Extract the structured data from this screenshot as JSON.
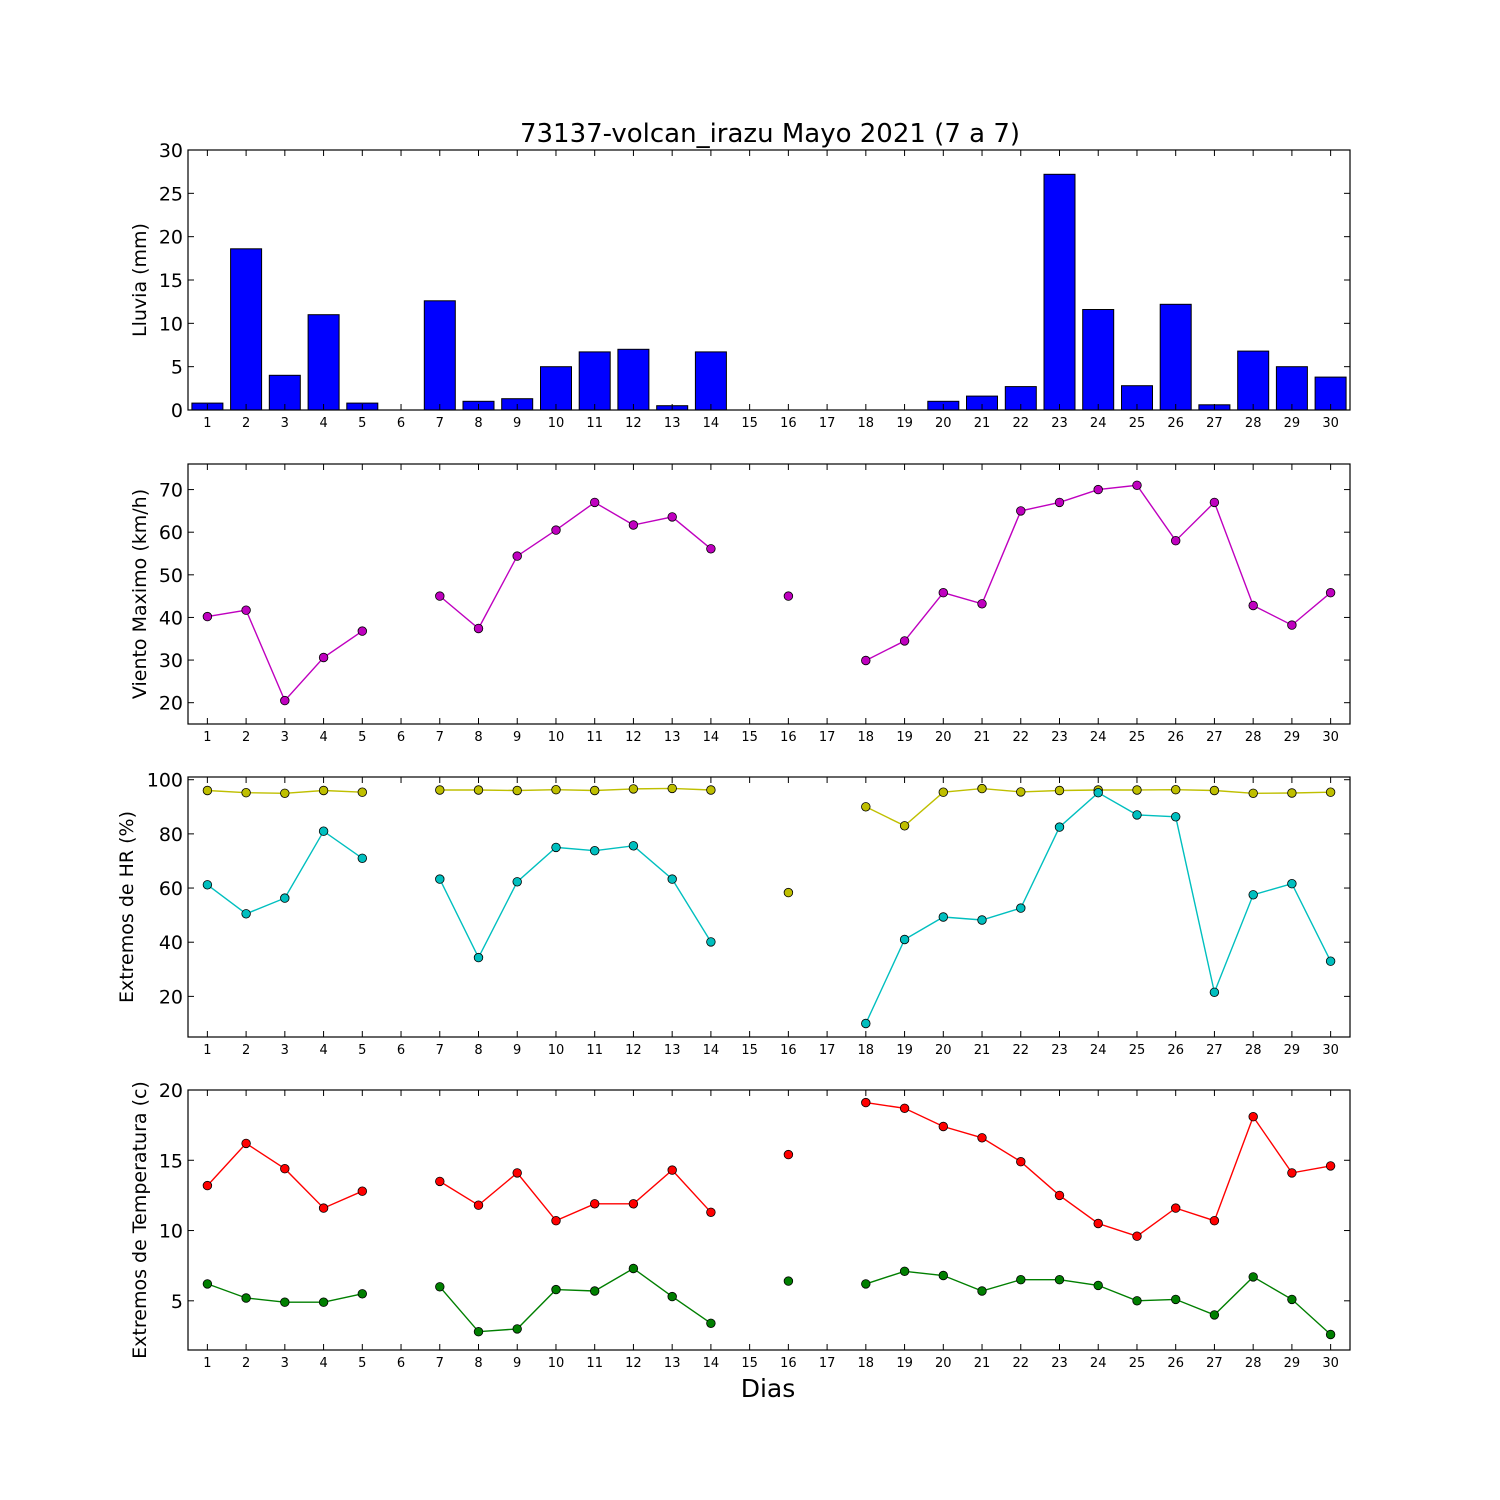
{
  "title": "73137-volcan_irazu Mayo 2021  (7 a 7)",
  "xlabel": "Dias",
  "chart_data": [
    {
      "type": "bar",
      "ylabel": "Lluvia (mm)",
      "ylim": [
        0,
        30
      ],
      "yticks": [
        0,
        5,
        10,
        15,
        20,
        25,
        30
      ],
      "categories": [
        "1",
        "2",
        "3",
        "4",
        "5",
        "6",
        "7",
        "8",
        "9",
        "10",
        "11",
        "12",
        "13",
        "14",
        "15",
        "16",
        "17",
        "18",
        "19",
        "20",
        "21",
        "22",
        "23",
        "24",
        "25",
        "26",
        "27",
        "28",
        "29",
        "30"
      ],
      "series": [
        {
          "color": "#0000ff",
          "values": [
            0.8,
            18.6,
            4.0,
            11.0,
            0.8,
            0,
            12.6,
            1.0,
            1.3,
            5.0,
            6.7,
            7.0,
            0.5,
            6.7,
            0,
            0,
            0,
            0,
            0,
            1.0,
            1.6,
            2.7,
            27.2,
            11.6,
            2.8,
            12.2,
            0.6,
            6.8,
            5.0,
            3.8
          ]
        }
      ],
      "grid": false
    },
    {
      "type": "line",
      "ylabel": "Viento Maximo (km/h)",
      "ylim": [
        15,
        76
      ],
      "yticks": [
        20,
        30,
        40,
        50,
        60,
        70
      ],
      "categories": [
        "1",
        "2",
        "3",
        "4",
        "5",
        "6",
        "7",
        "8",
        "9",
        "10",
        "11",
        "12",
        "13",
        "14",
        "15",
        "16",
        "17",
        "18",
        "19",
        "20",
        "21",
        "22",
        "23",
        "24",
        "25",
        "26",
        "27",
        "28",
        "29",
        "30"
      ],
      "series": [
        {
          "color": "#bf00bf",
          "values": [
            40.2,
            41.7,
            20.5,
            30.6,
            36.8,
            null,
            45.0,
            37.4,
            54.4,
            60.5,
            67.0,
            61.7,
            63.6,
            56.1,
            null,
            45.0,
            null,
            29.9,
            34.5,
            45.8,
            43.2,
            65.0,
            67.0,
            70.0,
            71.0,
            58.0,
            67.0,
            42.8,
            38.2,
            45.8
          ]
        }
      ],
      "grid": false
    },
    {
      "type": "line",
      "ylabel": "Extremos de HR (%)",
      "ylim": [
        5,
        101
      ],
      "yticks": [
        20,
        40,
        60,
        80,
        100
      ],
      "categories": [
        "1",
        "2",
        "3",
        "4",
        "5",
        "6",
        "7",
        "8",
        "9",
        "10",
        "11",
        "12",
        "13",
        "14",
        "15",
        "16",
        "17",
        "18",
        "19",
        "20",
        "21",
        "22",
        "23",
        "24",
        "25",
        "26",
        "27",
        "28",
        "29",
        "30"
      ],
      "series": [
        {
          "color": "#bfbf00",
          "values": [
            96.0,
            95.2,
            95.0,
            96.0,
            95.4,
            null,
            96.2,
            96.2,
            96.0,
            96.3,
            96.0,
            96.6,
            96.8,
            96.2,
            null,
            58.3,
            null,
            90.0,
            83.0,
            95.4,
            96.7,
            95.5,
            96.0,
            96.2,
            96.2,
            96.3,
            96.0,
            95.0,
            95.1,
            95.4
          ]
        },
        {
          "color": "#00bfbf",
          "values": [
            61.2,
            50.5,
            56.3,
            81.0,
            71.0,
            null,
            63.3,
            34.3,
            62.3,
            75.0,
            73.8,
            75.6,
            63.3,
            40.1,
            null,
            null,
            null,
            10.0,
            41.0,
            49.3,
            48.2,
            52.6,
            82.5,
            95.2,
            87.0,
            86.3,
            21.5,
            57.5,
            61.6,
            33.0
          ]
        }
      ],
      "grid": false
    },
    {
      "type": "line",
      "ylabel": "Extremos de Temperatura (c)",
      "ylim": [
        1.5,
        20
      ],
      "yticks": [
        5,
        10,
        15,
        20
      ],
      "categories": [
        "1",
        "2",
        "3",
        "4",
        "5",
        "6",
        "7",
        "8",
        "9",
        "10",
        "11",
        "12",
        "13",
        "14",
        "15",
        "16",
        "17",
        "18",
        "19",
        "20",
        "21",
        "22",
        "23",
        "24",
        "25",
        "26",
        "27",
        "28",
        "29",
        "30"
      ],
      "series": [
        {
          "color": "#ff0000",
          "values": [
            13.2,
            16.2,
            14.4,
            11.6,
            12.8,
            null,
            13.5,
            11.8,
            14.1,
            10.7,
            11.9,
            11.9,
            14.3,
            11.3,
            null,
            15.4,
            null,
            19.1,
            18.7,
            17.4,
            16.6,
            14.9,
            12.5,
            10.5,
            9.6,
            11.6,
            10.7,
            18.1,
            14.1,
            14.6
          ]
        },
        {
          "color": "#007f00",
          "values": [
            6.2,
            5.2,
            4.9,
            4.9,
            5.5,
            null,
            6.0,
            2.8,
            3.0,
            5.8,
            5.7,
            7.3,
            5.3,
            3.4,
            null,
            6.4,
            null,
            6.2,
            7.1,
            6.8,
            5.7,
            6.5,
            6.5,
            6.1,
            5.0,
            5.1,
            4.0,
            6.7,
            5.1,
            2.6
          ]
        }
      ],
      "grid": false
    }
  ]
}
